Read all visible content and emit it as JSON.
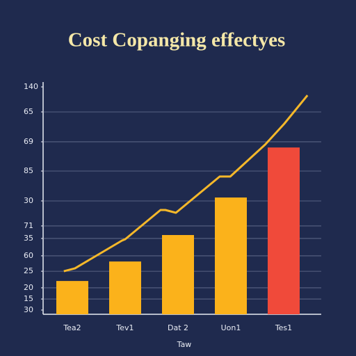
{
  "chart_data": {
    "type": "bar",
    "title": "Cost Copanging effectyes",
    "x_label": "Taw",
    "categories": [
      "Tea2",
      "Tev1",
      "Dat 2",
      "Uon1",
      "Tes1"
    ],
    "values": [
      20.5,
      32.5,
      48.8,
      71.9,
      102.7
    ],
    "colors": [
      "#fbb21b",
      "#fbb21b",
      "#fbb21b",
      "#fbb21b",
      "#f04a3a"
    ],
    "line": {
      "color": "#f5b82a",
      "x": [
        -0.16,
        0.05,
        0.94,
        1.0,
        1.67,
        1.76,
        1.96,
        2.79,
        2.99,
        3.65,
        4.01,
        4.45
      ],
      "values": [
        26.5,
        28.3,
        45.4,
        46.2,
        64.2,
        64.2,
        62.5,
        84.8,
        84.8,
        104.5,
        117.3,
        134.8
      ]
    },
    "ylim": [
      0,
      140
    ],
    "yticks": [
      140,
      {
        "value": 124.6,
        "label": "65"
      },
      {
        "value": 106.2,
        "label": "69"
      },
      {
        "value": 88.2,
        "label": "85"
      },
      {
        "value": 69.8,
        "label": "30"
      },
      {
        "value": 54.4,
        "label": "71"
      },
      {
        "value": 46.7,
        "label": "35"
      },
      {
        "value": 36,
        "label": "60"
      },
      {
        "value": 26.5,
        "label": "25"
      },
      {
        "value": 16.3,
        "label": "20"
      },
      {
        "value": 9.4,
        "label": "15"
      },
      {
        "value": 2.6,
        "label": "30"
      }
    ],
    "grid": true
  }
}
